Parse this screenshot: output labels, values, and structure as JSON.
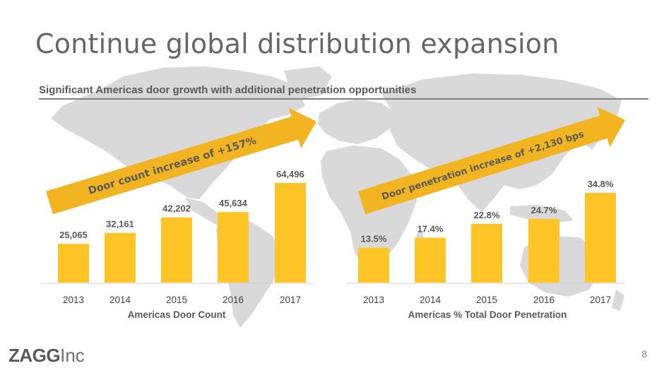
{
  "title": "Continue global distribution expansion",
  "subtitle": "Significant Americas door growth with additional penetration opportunities",
  "page_number": "8",
  "logo": {
    "bold": "ZAGG",
    "light": "Inc"
  },
  "colors": {
    "bar": "#FFC425",
    "arrow": "#F2B521",
    "map": "#D9D9D9",
    "text": "#595959"
  },
  "chart_data": [
    {
      "type": "bar",
      "title": "",
      "xlabel": "Americas Door Count",
      "ylabel": "",
      "categories": [
        "2013",
        "2014",
        "2015",
        "2016",
        "2017"
      ],
      "values": [
        25065,
        32161,
        42202,
        45634,
        64496
      ],
      "data_labels": [
        "25,065",
        "32,161",
        "42,202",
        "45,634",
        "64,496"
      ],
      "ylim": [
        0,
        70000
      ],
      "grid": false,
      "annotation": "Door count increase of +157%"
    },
    {
      "type": "bar",
      "title": "",
      "xlabel": "Americas % Total Door Penetration",
      "ylabel": "",
      "categories": [
        "2013",
        "2014",
        "2015",
        "2016",
        "2017"
      ],
      "values": [
        13.5,
        17.4,
        22.8,
        24.7,
        34.8
      ],
      "data_labels": [
        "13.5%",
        "17.4%",
        "22.8%",
        "24.7%",
        "34.8%"
      ],
      "ylim": [
        0,
        40
      ],
      "grid": false,
      "annotation": "Door penetration increase of +2,130 bps"
    }
  ]
}
